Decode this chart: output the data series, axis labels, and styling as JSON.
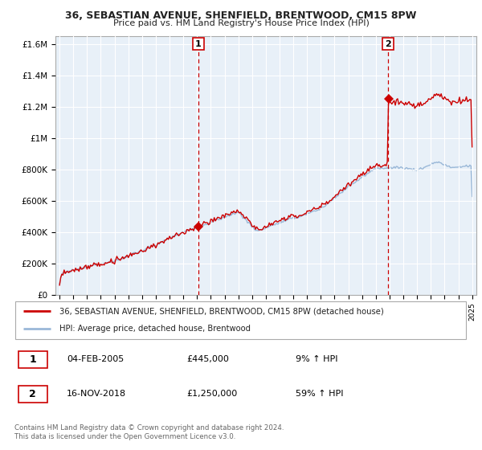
{
  "title": "36, SEBASTIAN AVENUE, SHENFIELD, BRENTWOOD, CM15 8PW",
  "subtitle": "Price paid vs. HM Land Registry's House Price Index (HPI)",
  "hpi_color": "#9ab8d8",
  "house_color": "#cc0000",
  "dashed_color": "#cc0000",
  "sale1_date": "04-FEB-2005",
  "sale1_price": "£445,000",
  "sale1_hpi": "9% ↑ HPI",
  "sale1_year": 2005.1,
  "sale1_price_val": 445000,
  "sale2_date": "16-NOV-2018",
  "sale2_price": "£1,250,000",
  "sale2_hpi": "59% ↑ HPI",
  "sale2_year": 2018.88,
  "sale2_price_val": 1250000,
  "legend_house": "36, SEBASTIAN AVENUE, SHENFIELD, BRENTWOOD, CM15 8PW (detached house)",
  "legend_hpi": "HPI: Average price, detached house, Brentwood",
  "footer": "Contains HM Land Registry data © Crown copyright and database right 2024.\nThis data is licensed under the Open Government Licence v3.0.",
  "ylim": [
    0,
    1650000
  ],
  "yticks": [
    0,
    200000,
    400000,
    600000,
    800000,
    1000000,
    1200000,
    1400000,
    1600000
  ],
  "ytick_labels": [
    "£0",
    "£200K",
    "£400K",
    "£600K",
    "£800K",
    "£1M",
    "£1.2M",
    "£1.4M",
    "£1.6M"
  ],
  "plot_bg": "#e8f0f8",
  "fig_bg": "#ffffff",
  "grid_color": "#ffffff",
  "xlim_left": 1994.7,
  "xlim_right": 2025.3
}
